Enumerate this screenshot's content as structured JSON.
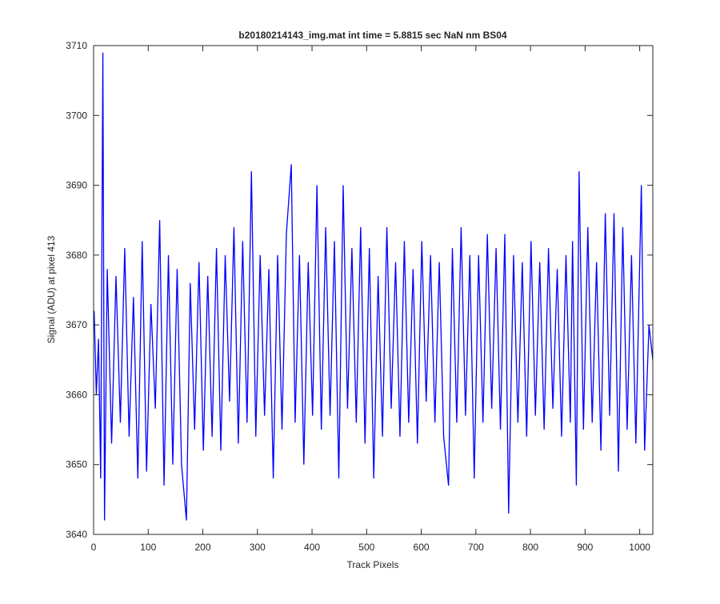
{
  "chart_data": {
    "type": "line",
    "title": "b20180214143_img.mat int time = 5.8815 sec  NaN nm BS04",
    "x_label": "Track Pixels",
    "y_label": "Signal (ADU) at pixel 413",
    "x": [
      1,
      5,
      9,
      13,
      17,
      20,
      25,
      33,
      41,
      49,
      57,
      65,
      73,
      81,
      89,
      97,
      105,
      113,
      121,
      129,
      137,
      145,
      153,
      161,
      170,
      177,
      185,
      193,
      201,
      209,
      217,
      225,
      233,
      241,
      249,
      257,
      265,
      273,
      281,
      289,
      297,
      305,
      313,
      321,
      329,
      337,
      345,
      353,
      362,
      369,
      377,
      385,
      393,
      401,
      409,
      417,
      425,
      433,
      441,
      449,
      457,
      465,
      473,
      481,
      489,
      497,
      505,
      513,
      521,
      529,
      537,
      545,
      553,
      561,
      569,
      577,
      585,
      593,
      601,
      609,
      617,
      625,
      633,
      641,
      650,
      657,
      665,
      673,
      681,
      689,
      697,
      705,
      713,
      721,
      729,
      737,
      745,
      753,
      760,
      769,
      777,
      785,
      793,
      801,
      809,
      817,
      825,
      833,
      841,
      849,
      857,
      865,
      873,
      877,
      884,
      889,
      897,
      905,
      913,
      921,
      929,
      937,
      945,
      953,
      961,
      969,
      977,
      985,
      993,
      1003,
      1009,
      1017,
      1024
    ],
    "values": [
      3672,
      3660,
      3668,
      3648,
      3709,
      3642,
      3678,
      3653,
      3677,
      3656,
      3681,
      3654,
      3674,
      3648,
      3682,
      3649,
      3673,
      3658,
      3685,
      3647,
      3680,
      3650,
      3678,
      3650,
      3642,
      3676,
      3655,
      3679,
      3652,
      3677,
      3654,
      3681,
      3652,
      3680,
      3659,
      3684,
      3653,
      3682,
      3656,
      3692,
      3654,
      3680,
      3657,
      3678,
      3648,
      3680,
      3655,
      3683,
      3693,
      3656,
      3680,
      3650,
      3679,
      3657,
      3690,
      3655,
      3684,
      3657,
      3682,
      3648,
      3690,
      3658,
      3681,
      3656,
      3684,
      3653,
      3681,
      3648,
      3677,
      3654,
      3684,
      3658,
      3679,
      3654,
      3682,
      3656,
      3678,
      3653,
      3682,
      3659,
      3680,
      3656,
      3679,
      3654,
      3647,
      3681,
      3656,
      3684,
      3657,
      3680,
      3648,
      3680,
      3656,
      3683,
      3658,
      3681,
      3655,
      3683,
      3643,
      3680,
      3656,
      3679,
      3654,
      3682,
      3657,
      3679,
      3655,
      3681,
      3658,
      3678,
      3654,
      3680,
      3656,
      3682,
      3647,
      3692,
      3655,
      3684,
      3656,
      3679,
      3652,
      3686,
      3657,
      3686,
      3649,
      3684,
      3655,
      3680,
      3653,
      3690,
      3652,
      3670,
      3665
    ],
    "color": "#0000ff",
    "xlim": [
      0,
      1024
    ],
    "xticks": [
      0,
      100,
      200,
      300,
      400,
      500,
      600,
      700,
      800,
      900,
      1000
    ],
    "ylim": [
      3640,
      3710
    ],
    "yticks": [
      3640,
      3650,
      3660,
      3670,
      3680,
      3690,
      3700,
      3710
    ],
    "grid": false
  }
}
